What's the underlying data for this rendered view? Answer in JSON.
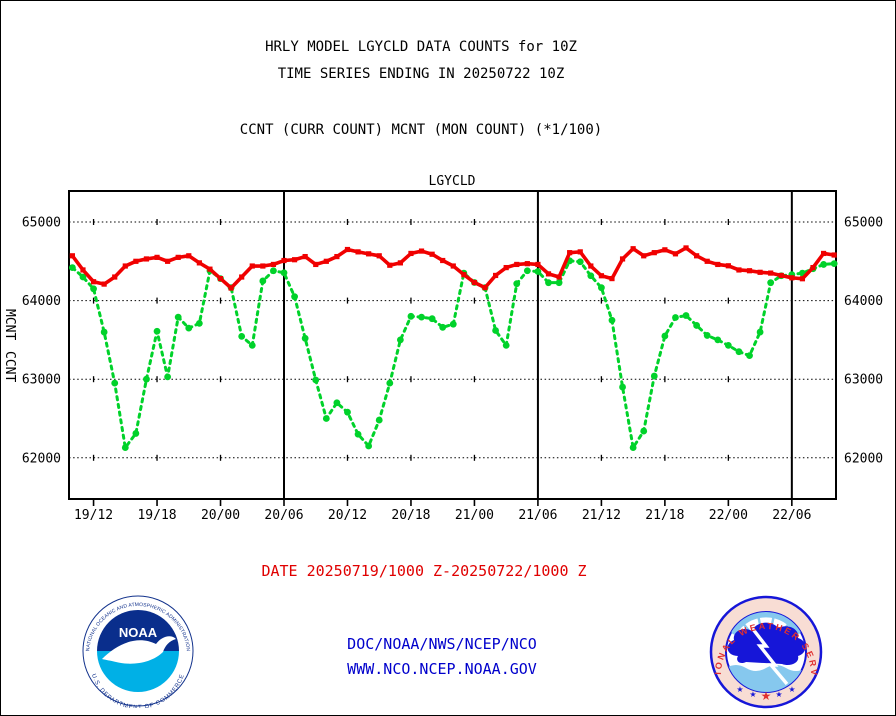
{
  "page": {
    "title_line1": "HRLY MODEL LGYCLD DATA COUNTS for 10Z",
    "title_line2": "TIME SERIES ENDING IN 20250722 10Z",
    "subtitle": "CCNT (CURR COUNT) MCNT (MON COUNT) (*1/100)",
    "footer_date": "DATE 20250719/1000 Z-20250722/1000 Z",
    "footer_org": "DOC/NOAA/NWS/NCEP/NCO",
    "footer_url": "WWW.NCO.NCEP.NOAA.GOV"
  },
  "colors": {
    "ccnt": "#f00000",
    "mcnt": "#00d22a",
    "blue": "#0000cc",
    "frame": "#000000"
  },
  "logos": {
    "noaa": {
      "label": "NOAA",
      "text_top": "NATIONAL OCEANIC AND ATMOSPHERIC ADMINISTRATION",
      "text_bottom": "U.S. DEPARTMENT OF COMMERCE"
    },
    "nws": {
      "text": "NATIONAL WEATHER SERVICE"
    }
  },
  "chart_data": {
    "type": "line",
    "title": "LGYCLD",
    "x_start": "20250719/1000Z",
    "x_end": "20250722/1000Z",
    "hours_total": 72,
    "ylim": [
      61500,
      65400
    ],
    "y_ticks": [
      62000,
      63000,
      64000,
      65000
    ],
    "x_ticks": [
      {
        "hour": 2,
        "label": "19/12"
      },
      {
        "hour": 8,
        "label": "19/18"
      },
      {
        "hour": 14,
        "label": "20/00"
      },
      {
        "hour": 20,
        "label": "20/06"
      },
      {
        "hour": 26,
        "label": "20/12"
      },
      {
        "hour": 32,
        "label": "20/18"
      },
      {
        "hour": 38,
        "label": "21/00"
      },
      {
        "hour": 44,
        "label": "21/06"
      },
      {
        "hour": 50,
        "label": "21/12"
      },
      {
        "hour": 56,
        "label": "21/18"
      },
      {
        "hour": 62,
        "label": "22/00"
      },
      {
        "hour": 68,
        "label": "22/06"
      }
    ],
    "day_line_hours": [
      20,
      44,
      68
    ],
    "axis_name_left_upper": "MCNT",
    "axis_name_left_lower": "CCNT",
    "series": [
      {
        "name": "MCNT",
        "color": "#00d22a",
        "style": "dashed",
        "marker": "circle",
        "values": [
          64420,
          64300,
          64150,
          63600,
          62950,
          62130,
          62310,
          63000,
          63610,
          63030,
          63790,
          63650,
          63710,
          64380,
          64280,
          64165,
          63545,
          63430,
          64250,
          64380,
          64354,
          64050,
          63520,
          62990,
          62500,
          62700,
          62580,
          62300,
          62150,
          62480,
          62950,
          63500,
          63800,
          63790,
          63770,
          63660,
          63700,
          64350,
          64230,
          64164,
          63620,
          63430,
          64215,
          64380,
          64370,
          64228,
          64228,
          64506,
          64494,
          64316,
          64164,
          63750,
          62900,
          62130,
          62340,
          63040,
          63550,
          63785,
          63810,
          63684,
          63557,
          63500,
          63430,
          63350,
          63300,
          63600,
          64228,
          64316,
          64330,
          64350,
          64405,
          64460,
          64470
        ]
      },
      {
        "name": "CCNT",
        "color": "#f00000",
        "style": "solid",
        "marker": "square",
        "values": [
          64570,
          64390,
          64240,
          64210,
          64300,
          64440,
          64500,
          64530,
          64550,
          64500,
          64550,
          64570,
          64480,
          64400,
          64280,
          64160,
          64300,
          64440,
          64440,
          64460,
          64510,
          64520,
          64560,
          64460,
          64500,
          64560,
          64650,
          64620,
          64595,
          64570,
          64450,
          64480,
          64600,
          64630,
          64590,
          64510,
          64440,
          64330,
          64230,
          64165,
          64320,
          64420,
          64460,
          64470,
          64460,
          64340,
          64300,
          64610,
          64620,
          64440,
          64316,
          64280,
          64530,
          64660,
          64570,
          64610,
          64646,
          64595,
          64670,
          64570,
          64500,
          64460,
          64443,
          64390,
          64380,
          64360,
          64350,
          64320,
          64290,
          64278,
          64420,
          64600,
          64580
        ]
      }
    ]
  }
}
